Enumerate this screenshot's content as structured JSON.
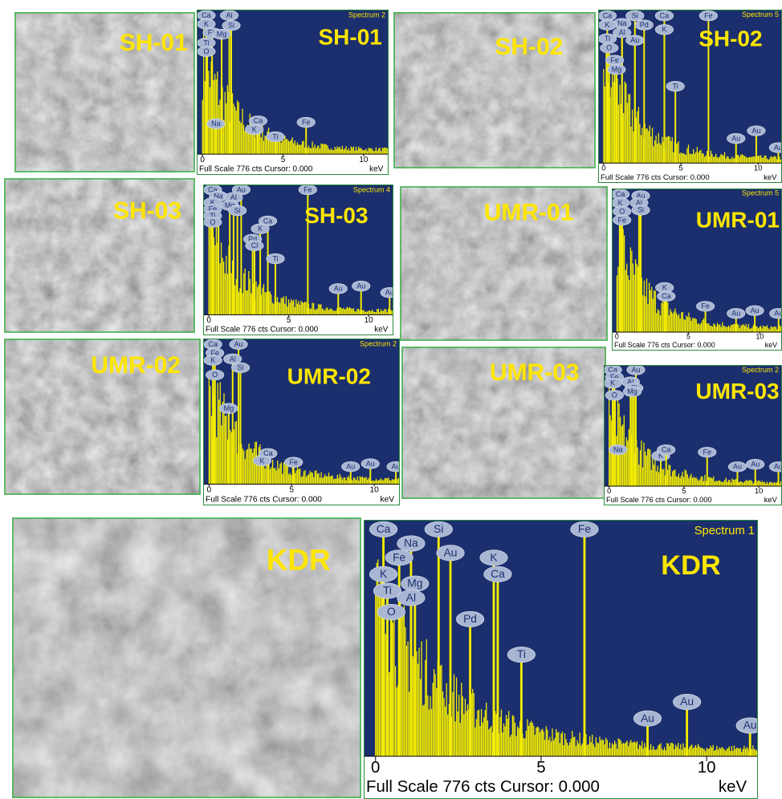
{
  "panels": [
    {
      "image_label": "SH-01",
      "spectrum": {
        "title": "Spectrum 2",
        "label": "SH-01",
        "elements": [
          "Ca",
          "Al",
          "K",
          "Si",
          "Fe",
          "Mg",
          "Ti",
          "O",
          "Na",
          "Ca",
          "K",
          "Ti",
          "Fe"
        ],
        "ticks": [
          "0",
          "5",
          "10"
        ],
        "footer": "Full Scale 776 cts Cursor: 0.000",
        "unit": "keV"
      }
    },
    {
      "image_label": "SH-02",
      "spectrum": {
        "title": "Spectrum 5",
        "label": "SH-02",
        "elements": [
          "Ca",
          "Si",
          "Fe",
          "Na",
          "Pd",
          "Ca",
          "K",
          "Al",
          "K",
          "Ti",
          "Au",
          "O",
          "Fe",
          "Mg",
          "Ti",
          "Au",
          "Au",
          "Au"
        ],
        "ticks": [
          "0",
          "5",
          "10"
        ],
        "footer": "Full Scale 776 cts Cursor: 0.000",
        "unit": "keV"
      }
    },
    {
      "image_label": "SH-03",
      "spectrum": {
        "title": "Spectrum 4",
        "label": "SH-03",
        "elements": [
          "Ca",
          "Au",
          "Fe",
          "Na",
          "Al",
          "K",
          "Mg",
          "Si",
          "Fe",
          "Ti",
          "O",
          "Ca",
          "K",
          "Pd",
          "Cl",
          "Ti",
          "Au",
          "Au",
          "Au"
        ],
        "ticks": [
          "0",
          "5",
          "10"
        ],
        "footer": "Full Scale 776 cts Cursor: 0.000",
        "unit": "keV"
      }
    },
    {
      "image_label": "UMR-01",
      "spectrum": {
        "title": "Spectrum 5",
        "label": "UMR-01",
        "elements": [
          "Ca",
          "Au",
          "K",
          "Al",
          "O",
          "Si",
          "Fe",
          "K",
          "Ca",
          "Fe",
          "Au",
          "Au",
          "Au"
        ],
        "ticks": [
          "0",
          "5",
          "10"
        ],
        "footer": "Full Scale 776 cts Cursor: 0.000",
        "unit": "keV"
      }
    },
    {
      "image_label": "UMR-02",
      "spectrum": {
        "title": "Spectrum 2",
        "label": "UMR-02",
        "elements": [
          "Ca",
          "Au",
          "Fe",
          "Al",
          "K",
          "Si",
          "O",
          "Mg",
          "Ca",
          "K",
          "Fe",
          "Au",
          "Au",
          "Au"
        ],
        "ticks": [
          "0",
          "5",
          "10"
        ],
        "footer": "Full Scale 776 cts Cursor: 0.000",
        "unit": "keV"
      }
    },
    {
      "image_label": "UMR-03",
      "spectrum": {
        "title": "Spectrum 2",
        "label": "UMR-03",
        "elements": [
          "Ca",
          "Au",
          "Fe",
          "Al",
          "K",
          "Si",
          "O",
          "Mg",
          "Na",
          "K",
          "Ca",
          "Fe",
          "Au",
          "Au",
          "Au"
        ],
        "ticks": [
          "0",
          "5",
          "10"
        ],
        "footer": "Full Scale 776 cts Cursor: 0.000",
        "unit": "keV"
      }
    },
    {
      "image_label": "KDR",
      "spectrum": {
        "title": "Spectrum 1",
        "label": "KDR",
        "elements": [
          "Ca",
          "Si",
          "Na",
          "Au",
          "Fe",
          "K",
          "Ca",
          "K",
          "Mg",
          "Ti",
          "Al",
          "O",
          "Pd",
          "Ti",
          "Fe",
          "Au",
          "Au",
          "Au"
        ],
        "ticks": [
          "0",
          "5",
          "10"
        ],
        "footer": "Full Scale 776 cts Cursor: 0.000",
        "unit": "keV"
      }
    }
  ]
}
